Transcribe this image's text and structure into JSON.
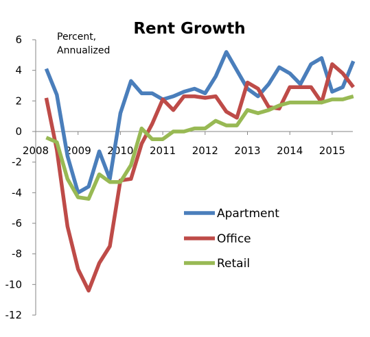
{
  "chart_data": {
    "type": "line",
    "title": "Rent Growth",
    "ylabel_lines": [
      "Percent,",
      "Annualized"
    ],
    "xlim": [
      2008,
      2015.5
    ],
    "ylim": [
      -12,
      6
    ],
    "x_ticks": [
      2008,
      2009,
      2010,
      2011,
      2012,
      2013,
      2014,
      2015
    ],
    "x_tick_labels": [
      "2008",
      "2009",
      "2010",
      "2011",
      "2012",
      "2013",
      "2014",
      "2015"
    ],
    "y_ticks": [
      6,
      4,
      2,
      0,
      -2,
      -4,
      -6,
      -8,
      -10,
      -12
    ],
    "y_tick_labels": [
      "6",
      "4",
      "2",
      "0",
      "-2",
      "-4",
      "-6",
      "-8",
      "-10",
      "-12"
    ],
    "grid": false,
    "legend_position": "center-right",
    "series": [
      {
        "name": "Apartment",
        "color": "#4a7ebb",
        "points": [
          [
            2008.25,
            4.1
          ],
          [
            2008.5,
            2.4
          ],
          [
            2008.75,
            -1.6
          ],
          [
            2009.0,
            -4.0
          ],
          [
            2009.25,
            -3.6
          ],
          [
            2009.5,
            -1.3
          ],
          [
            2009.75,
            -3.1
          ],
          [
            2010.0,
            1.2
          ],
          [
            2010.25,
            3.3
          ],
          [
            2010.5,
            2.5
          ],
          [
            2010.75,
            2.5
          ],
          [
            2011.0,
            2.1
          ],
          [
            2011.25,
            2.3
          ],
          [
            2011.5,
            2.6
          ],
          [
            2011.75,
            2.8
          ],
          [
            2012.0,
            2.5
          ],
          [
            2012.25,
            3.6
          ],
          [
            2012.5,
            5.2
          ],
          [
            2012.75,
            4.0
          ],
          [
            2013.0,
            2.8
          ],
          [
            2013.25,
            2.3
          ],
          [
            2013.5,
            3.1
          ],
          [
            2013.75,
            4.2
          ],
          [
            2014.0,
            3.8
          ],
          [
            2014.25,
            3.1
          ],
          [
            2014.5,
            4.4
          ],
          [
            2014.75,
            4.8
          ],
          [
            2015.0,
            2.6
          ],
          [
            2015.25,
            2.9
          ],
          [
            2015.5,
            4.6
          ]
        ]
      },
      {
        "name": "Office",
        "color": "#be4b48",
        "points": [
          [
            2008.25,
            2.2
          ],
          [
            2008.5,
            -1.2
          ],
          [
            2008.75,
            -6.2
          ],
          [
            2009.0,
            -9.0
          ],
          [
            2009.25,
            -10.4
          ],
          [
            2009.5,
            -8.6
          ],
          [
            2009.75,
            -7.5
          ],
          [
            2010.0,
            -3.2
          ],
          [
            2010.25,
            -3.1
          ],
          [
            2010.5,
            -0.8
          ],
          [
            2010.75,
            0.5
          ],
          [
            2011.0,
            2.1
          ],
          [
            2011.25,
            1.4
          ],
          [
            2011.5,
            2.3
          ],
          [
            2011.75,
            2.3
          ],
          [
            2012.0,
            2.2
          ],
          [
            2012.25,
            2.3
          ],
          [
            2012.5,
            1.3
          ],
          [
            2012.75,
            0.9
          ],
          [
            2013.0,
            3.2
          ],
          [
            2013.25,
            2.8
          ],
          [
            2013.5,
            1.6
          ],
          [
            2013.75,
            1.5
          ],
          [
            2014.0,
            2.9
          ],
          [
            2014.25,
            2.9
          ],
          [
            2014.5,
            2.9
          ],
          [
            2014.75,
            1.9
          ],
          [
            2015.0,
            4.4
          ],
          [
            2015.25,
            3.8
          ],
          [
            2015.5,
            2.9
          ]
        ]
      },
      {
        "name": "Retail",
        "color": "#98b954",
        "points": [
          [
            2008.25,
            -0.4
          ],
          [
            2008.5,
            -0.7
          ],
          [
            2008.75,
            -3.1
          ],
          [
            2009.0,
            -4.3
          ],
          [
            2009.25,
            -4.4
          ],
          [
            2009.5,
            -2.8
          ],
          [
            2009.75,
            -3.3
          ],
          [
            2010.0,
            -3.3
          ],
          [
            2010.25,
            -2.2
          ],
          [
            2010.5,
            0.2
          ],
          [
            2010.75,
            -0.5
          ],
          [
            2011.0,
            -0.5
          ],
          [
            2011.25,
            0.0
          ],
          [
            2011.5,
            0.0
          ],
          [
            2011.75,
            0.2
          ],
          [
            2012.0,
            0.2
          ],
          [
            2012.25,
            0.7
          ],
          [
            2012.5,
            0.4
          ],
          [
            2012.75,
            0.4
          ],
          [
            2013.0,
            1.4
          ],
          [
            2013.25,
            1.2
          ],
          [
            2013.5,
            1.4
          ],
          [
            2013.75,
            1.7
          ],
          [
            2014.0,
            1.9
          ],
          [
            2014.25,
            1.9
          ],
          [
            2014.5,
            1.9
          ],
          [
            2014.75,
            1.9
          ],
          [
            2015.0,
            2.1
          ],
          [
            2015.25,
            2.1
          ],
          [
            2015.5,
            2.3
          ]
        ]
      }
    ]
  }
}
